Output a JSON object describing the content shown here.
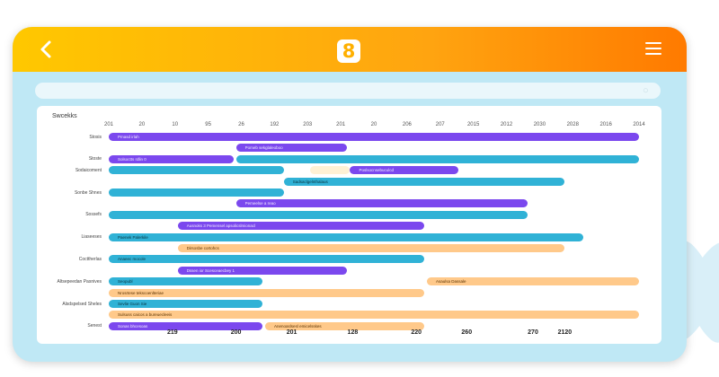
{
  "header": {
    "logo_text": "8",
    "back_icon": "chevron-left-icon",
    "menu_icon": "hamburger-menu-icon"
  },
  "search": {
    "placeholder": ""
  },
  "schedule": {
    "title": "Swcekks",
    "top_ticks": [
      "201",
      "20",
      "10",
      "95",
      "26",
      "192",
      "203",
      "201",
      "20",
      "206",
      "207",
      "2015",
      "2012",
      "2030",
      "2028",
      "2016",
      "2014"
    ],
    "bottom_ticks": [
      "219",
      "200",
      "201",
      "128",
      "220",
      "260",
      "270",
      "2120"
    ],
    "rows": [
      {
        "label": "Stosis",
        "bars": [
          {
            "text": "Pmasd irlah",
            "color": "purple",
            "start": 0,
            "end": 1
          }
        ]
      },
      {
        "label": "",
        "bars": [
          {
            "text": "Pomeb sekglaleoboo",
            "color": "purple",
            "start": 0.24,
            "end": 0.45
          }
        ]
      },
      {
        "label": "Stoste",
        "bars": [
          {
            "text": "Solsoctts rdlin 0",
            "color": "purple",
            "start": 0,
            "end": 0.235
          },
          {
            "text": "",
            "color": "blue",
            "start": 0.24,
            "end": 1
          }
        ]
      },
      {
        "label": "Sodaicoment",
        "bars": [
          {
            "text": "",
            "color": "blue",
            "start": 0,
            "end": 0.33
          },
          {
            "text": "",
            "color": "cream",
            "start": 0.38,
            "end": 0.455
          },
          {
            "text": "Poslsocnsebuculcd",
            "color": "purple",
            "start": 0.455,
            "end": 0.66
          }
        ]
      },
      {
        "label": "",
        "bars": [
          {
            "text": "Sadsaclgelnthalaus",
            "color": "blue",
            "start": 0.33,
            "end": 0.86
          }
        ]
      },
      {
        "label": "Sonbe Shnes",
        "bars": [
          {
            "text": "",
            "color": "blue",
            "start": 0,
            "end": 0.33
          }
        ]
      },
      {
        "label": "",
        "bars": [
          {
            "text": "Pemeelse a reao",
            "color": "purple",
            "start": 0.24,
            "end": 0.79
          }
        ]
      },
      {
        "label": "Sossefs",
        "bars": [
          {
            "text": "",
            "color": "blue",
            "start": 0,
            "end": 0.79
          }
        ]
      },
      {
        "label": "",
        "bars": [
          {
            "text": "Ausnoks 3 Pemensel apsolicslmionacl",
            "color": "purple",
            "start": 0.13,
            "end": 0.595
          }
        ]
      },
      {
        "label": "Liaseeses",
        "bars": [
          {
            "text": "Paenek Palerkile",
            "color": "blue",
            "start": 0,
            "end": 0.895
          }
        ]
      },
      {
        "label": "",
        "bars": [
          {
            "text": "Dirsosbe cortohcs",
            "color": "orange",
            "start": 0.13,
            "end": 0.86
          }
        ]
      },
      {
        "label": "Cocttherlas",
        "bars": [
          {
            "text": "Anaeec mocole",
            "color": "blue",
            "start": 0,
            "end": 0.595
          }
        ]
      },
      {
        "label": "",
        "bars": [
          {
            "text": "Dssen ior Scesceaecbey 1",
            "color": "purple",
            "start": 0.13,
            "end": 0.45
          }
        ]
      },
      {
        "label": "Altsepeedan Pasnives",
        "bars": [
          {
            "text": "Seopubl",
            "color": "blue",
            "start": 0,
            "end": 0.29
          },
          {
            "text": "Asaulsa Dassale",
            "color": "orange",
            "start": 0.6,
            "end": 1
          }
        ]
      },
      {
        "label": "",
        "bars": [
          {
            "text": "Nrosrtese tekscoenlteriae",
            "color": "orange",
            "start": 0,
            "end": 0.595
          }
        ]
      },
      {
        "label": "Alsdspelsed Sheles",
        "bars": [
          {
            "text": "Sevlie Guon Sie",
            "color": "blue",
            "start": 0,
            "end": 0.29
          }
        ]
      },
      {
        "label": "",
        "bars": [
          {
            "text": "Sulsuss caicos a bureuecleeis",
            "color": "orange",
            "start": 0,
            "end": 1
          }
        ]
      },
      {
        "label": "Senest",
        "bars": [
          {
            "text": "Sonas bhcesoas",
            "color": "purple",
            "start": 0,
            "end": 0.29
          },
          {
            "text": "Anenoaslsesl emicelsskes",
            "color": "orange",
            "start": 0.295,
            "end": 0.595
          }
        ]
      }
    ]
  },
  "colors": {
    "purple": "#7b48ee",
    "blue": "#30b2d6",
    "orange": "#ffc98a",
    "header_start": "#ffc800",
    "header_end": "#ff7a00"
  }
}
